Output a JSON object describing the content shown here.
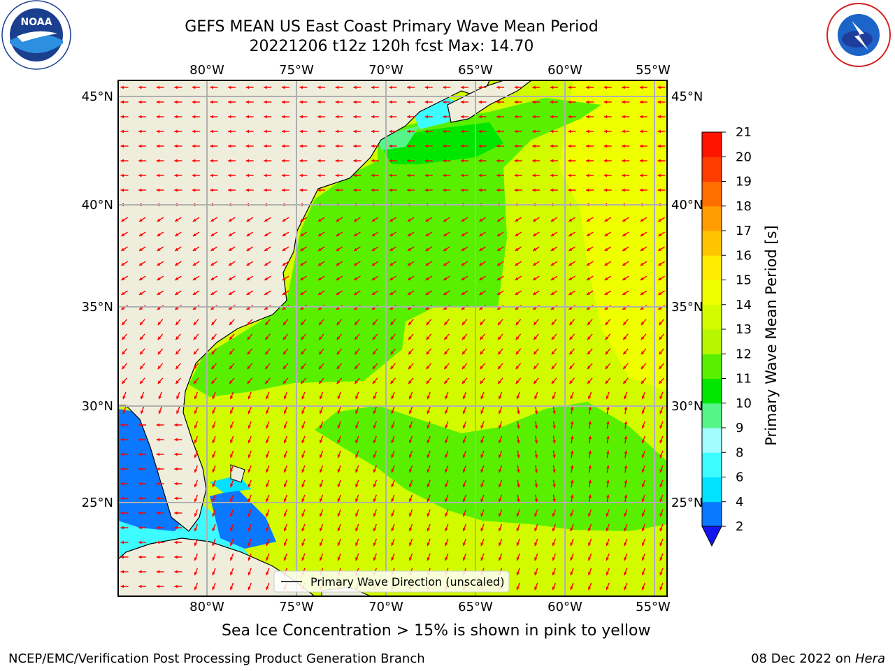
{
  "title": {
    "line1": "GEFS MEAN US East Coast Primary Wave Mean Period",
    "line2": "20221206 t12z 120h fcst   Max: 14.70"
  },
  "map": {
    "lon_labels": [
      "80°W",
      "75°W",
      "70°W",
      "65°W",
      "60°W",
      "55°W"
    ],
    "lat_labels": [
      "45°N",
      "40°N",
      "35°N",
      "30°N",
      "25°N"
    ],
    "legend_text": "Primary Wave Direction (unscaled)",
    "arrow_color": "#ff0000",
    "land_color": "#efeedc"
  },
  "colorbar": {
    "label": "Primary Wave Mean Period [s]",
    "ticks": [
      "2",
      "4",
      "6",
      "8",
      "9",
      "10",
      "11",
      "12",
      "13",
      "14",
      "15",
      "16",
      "17",
      "18",
      "19",
      "20",
      "21"
    ],
    "colors": [
      "#0a78ff",
      "#00e2ff",
      "#3dfcff",
      "#a2fcff",
      "#56f58a",
      "#00e600",
      "#58f000",
      "#b6f700",
      "#d2fb00",
      "#f0ff00",
      "#ffec00",
      "#ffc400",
      "#ff9c00",
      "#ff6e00",
      "#ff3c00",
      "#ff1400"
    ],
    "under_color": "#1414f0"
  },
  "subtitle": "Sea Ice Concentration > 15% is shown in pink to yellow",
  "footer": {
    "left": "NCEP/EMC/Verification Post Processing Product Generation Branch",
    "right_date": "08 Dec 2022 on ",
    "right_machine": "Hera"
  },
  "logos": {
    "left": "noaa-logo",
    "right": "nws-logo",
    "left_text": "NOAA"
  }
}
